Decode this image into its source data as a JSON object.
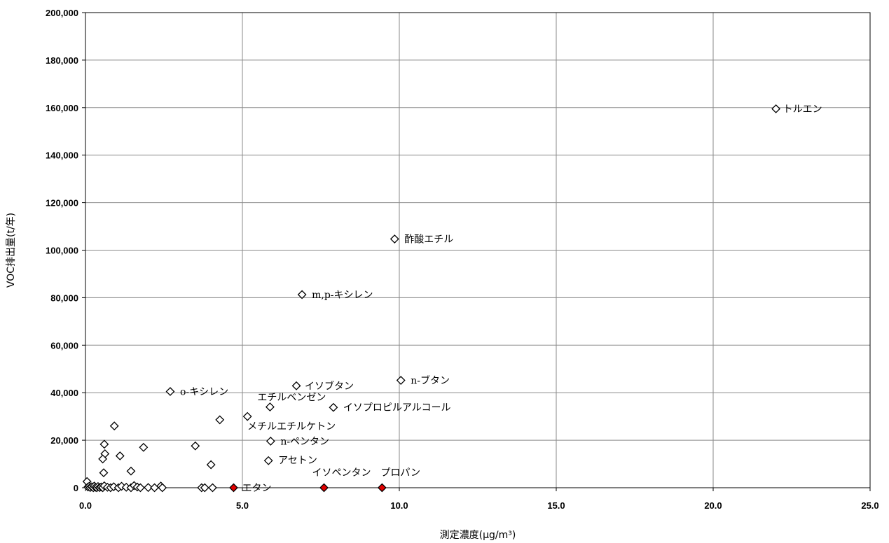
{
  "chart_data": {
    "type": "scatter",
    "xlabel": "測定濃度(μg/m³)",
    "ylabel": "VOC排出量(t/年)",
    "xlim": [
      0,
      25
    ],
    "ylim": [
      0,
      200000
    ],
    "grid": true,
    "x_ticks": [
      "0.0",
      "5.0",
      "10.0",
      "15.0",
      "20.0",
      "25.0"
    ],
    "y_ticks": [
      "0",
      "20,000",
      "40,000",
      "60,000",
      "80,000",
      "100,000",
      "120,000",
      "140,000",
      "160,000",
      "180,000",
      "200,000"
    ],
    "marker_colors": {
      "open": "#000000",
      "filled": "#e00000"
    },
    "labeled_points": [
      {
        "label": "トルエン",
        "x": 22.0,
        "y": 159500,
        "marker": "open"
      },
      {
        "label": "酢酸エチル",
        "x": 9.85,
        "y": 104700,
        "marker": "open"
      },
      {
        "label": "m,p-キシレン",
        "x": 6.9,
        "y": 81300,
        "marker": "open"
      },
      {
        "label": "n-ブタン",
        "x": 10.05,
        "y": 45200,
        "marker": "open"
      },
      {
        "label": "イソブタン",
        "x": 6.72,
        "y": 42900,
        "marker": "open"
      },
      {
        "label": "o-キシレン",
        "x": 2.7,
        "y": 40500,
        "marker": "open"
      },
      {
        "label": "エチルベンゼン",
        "x": 5.88,
        "y": 34000,
        "marker": "open"
      },
      {
        "label": "イソプロピルアルコール",
        "x": 7.9,
        "y": 33800,
        "marker": "open"
      },
      {
        "label": "メチルエチルケトン",
        "x": 5.16,
        "y": 30000,
        "marker": "open"
      },
      {
        "label": "n-ペンタン",
        "x": 5.9,
        "y": 19600,
        "marker": "open"
      },
      {
        "label": "アセトン",
        "x": 5.83,
        "y": 11400,
        "marker": "open"
      },
      {
        "label": "エタン",
        "x": 4.72,
        "y": 0,
        "marker": "filled"
      },
      {
        "label": "イソペンタン",
        "x": 7.6,
        "y": 0,
        "marker": "filled"
      },
      {
        "label": "プロパン",
        "x": 9.45,
        "y": 0,
        "marker": "filled"
      }
    ],
    "other_points": [
      {
        "x": 0.05,
        "y": 2600
      },
      {
        "x": 0.08,
        "y": 300
      },
      {
        "x": 0.12,
        "y": 600
      },
      {
        "x": 0.15,
        "y": 100
      },
      {
        "x": 0.2,
        "y": 400
      },
      {
        "x": 0.25,
        "y": 0
      },
      {
        "x": 0.28,
        "y": 700
      },
      {
        "x": 0.32,
        "y": 200
      },
      {
        "x": 0.36,
        "y": 0
      },
      {
        "x": 0.4,
        "y": 500
      },
      {
        "x": 0.45,
        "y": 100
      },
      {
        "x": 0.5,
        "y": 300
      },
      {
        "x": 0.55,
        "y": 0
      },
      {
        "x": 0.6,
        "y": 800
      },
      {
        "x": 0.7,
        "y": 200
      },
      {
        "x": 0.8,
        "y": 0
      },
      {
        "x": 0.9,
        "y": 400
      },
      {
        "x": 1.05,
        "y": 0
      },
      {
        "x": 1.15,
        "y": 600
      },
      {
        "x": 1.3,
        "y": 200
      },
      {
        "x": 1.45,
        "y": 0
      },
      {
        "x": 1.55,
        "y": 900
      },
      {
        "x": 1.65,
        "y": 300
      },
      {
        "x": 1.75,
        "y": 0
      },
      {
        "x": 2.0,
        "y": 100
      },
      {
        "x": 2.2,
        "y": 0
      },
      {
        "x": 2.4,
        "y": 700
      },
      {
        "x": 2.45,
        "y": 0
      },
      {
        "x": 0.6,
        "y": 18300
      },
      {
        "x": 0.62,
        "y": 14300
      },
      {
        "x": 0.55,
        "y": 12100
      },
      {
        "x": 0.58,
        "y": 6300
      },
      {
        "x": 0.92,
        "y": 26000
      },
      {
        "x": 1.1,
        "y": 13400
      },
      {
        "x": 1.45,
        "y": 7000
      },
      {
        "x": 1.85,
        "y": 17000
      },
      {
        "x": 3.5,
        "y": 17600
      },
      {
        "x": 4.28,
        "y": 28600
      },
      {
        "x": 4.0,
        "y": 9700
      },
      {
        "x": 3.7,
        "y": 0
      },
      {
        "x": 3.8,
        "y": 0
      },
      {
        "x": 4.05,
        "y": 0
      }
    ]
  }
}
